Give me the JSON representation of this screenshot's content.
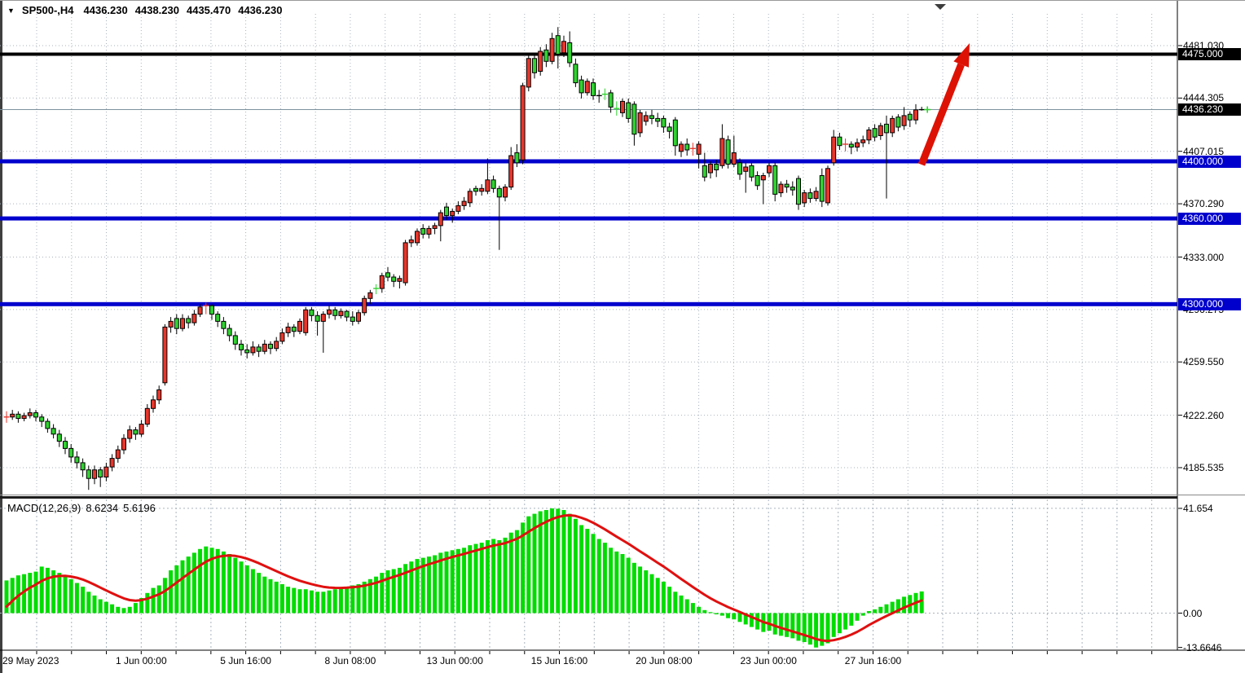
{
  "header": {
    "dropdown_icon": "▼",
    "symbol_timeframe": "SP500-,H4",
    "open": "4436.230",
    "high": "4438.230",
    "low": "4435.470",
    "close": "4436.230"
  },
  "macd": {
    "title": "MACD(12,26,9)",
    "main_value": "8.6234",
    "signal_value": "5.6196"
  },
  "icons": {
    "symbol_dropdown": "▼",
    "chart_top_marker": "triangle-down"
  },
  "colors": {
    "bull_candle": "#e8362b",
    "bear_candle": "#30d330",
    "candle_outline": "#000000",
    "macd_histogram": "#00dc00",
    "macd_signal": "#e01010",
    "level_blue": "#0000cd",
    "level_black": "#000000",
    "badge_black": "#000000",
    "badge_blue": "#0000cd",
    "grid": "#a9b3bd",
    "current_price_line": "#7e929e",
    "arrow_red": "#dd1205",
    "last_tick_cross": "#2ed42e"
  },
  "chart_data": [
    {
      "type": "candlestick",
      "title": "SP500- H4 price panel",
      "ylim": [
        4166.7,
        4504.4
      ],
      "y_ticks": [
        {
          "label": "4481.030",
          "price": 4481.03
        },
        {
          "label": "4444.305",
          "price": 4444.305
        },
        {
          "label": "4407.015",
          "price": 4407.015
        },
        {
          "label": "4370.290",
          "price": 4370.29
        },
        {
          "label": "4333.000",
          "price": 4333.0
        },
        {
          "label": "4296.275",
          "price": 4296.275
        },
        {
          "label": "4259.550",
          "price": 4259.55
        },
        {
          "label": "4222.260",
          "price": 4222.26
        },
        {
          "label": "4185.535",
          "price": 4185.535
        }
      ],
      "price_badges": [
        {
          "label": "4475.000",
          "price": 4475.0,
          "bg": "#000000"
        },
        {
          "label": "4436.230",
          "price": 4436.23,
          "bg": "#000000"
        },
        {
          "label": "4400.000",
          "price": 4400.0,
          "bg": "#0000cd"
        },
        {
          "label": "4360.000",
          "price": 4360.0,
          "bg": "#0000cd"
        },
        {
          "label": "4300.000",
          "price": 4300.0,
          "bg": "#0000cd"
        }
      ],
      "horizontal_levels": [
        {
          "price": 4475.0,
          "color": "#000000",
          "thickness": 4
        },
        {
          "price": 4400.0,
          "color": "#0000cd",
          "thickness": 5
        },
        {
          "price": 4360.0,
          "color": "#0000cd",
          "thickness": 5
        },
        {
          "price": 4300.0,
          "color": "#0000cd",
          "thickness": 5
        }
      ],
      "current_price": 4436.23,
      "current_price_label": "4436.230",
      "x_labels": [
        "29 May 2023",
        "1 Jun 00:00",
        "5 Jun 16:00",
        "8 Jun 08:00",
        "13 Jun 00:00",
        "15 Jun 16:00",
        "20 Jun 08:00",
        "23 Jun 00:00",
        "27 Jun 16:00"
      ],
      "arrow_annotation": {
        "tail": [
          1131,
          201
        ],
        "tip": [
          1190,
          52
        ],
        "color": "#dd1205",
        "thickness": 9
      },
      "top_marker": {
        "x": 1154,
        "y": 4
      },
      "ohlc": [
        [
          4220,
          4225,
          4217,
          4221
        ],
        [
          4221,
          4226,
          4219,
          4223
        ],
        [
          4223,
          4225,
          4217,
          4220
        ],
        [
          4220,
          4224,
          4218,
          4222
        ],
        [
          4222,
          4227,
          4220,
          4224
        ],
        [
          4224,
          4226,
          4218,
          4221
        ],
        [
          4221,
          4223,
          4214,
          4218
        ],
        [
          4218,
          4220,
          4210,
          4213
        ],
        [
          4213,
          4216,
          4206,
          4209
        ],
        [
          4209,
          4212,
          4200,
          4204
        ],
        [
          4204,
          4207,
          4195,
          4199
        ],
        [
          4199,
          4202,
          4189,
          4193
        ],
        [
          4193,
          4197,
          4185,
          4189
        ],
        [
          4189,
          4192,
          4179,
          4184
        ],
        [
          4184,
          4187,
          4170,
          4178
        ],
        [
          4178,
          4187,
          4174,
          4184
        ],
        [
          4184,
          4186,
          4172,
          4179
        ],
        [
          4179,
          4189,
          4176,
          4186
        ],
        [
          4186,
          4195,
          4183,
          4192
        ],
        [
          4192,
          4201,
          4189,
          4198
        ],
        [
          4198,
          4209,
          4195,
          4206
        ],
        [
          4206,
          4215,
          4203,
          4212
        ],
        [
          4212,
          4214,
          4205,
          4209
        ],
        [
          4209,
          4219,
          4207,
          4216
        ],
        [
          4216,
          4230,
          4214,
          4227
        ],
        [
          4227,
          4236,
          4224,
          4233
        ],
        [
          4233,
          4243,
          4230,
          4240
        ],
        [
          4245,
          4286,
          4243,
          4284
        ],
        [
          4284,
          4291,
          4280,
          4288
        ],
        [
          4290,
          4293,
          4279,
          4283
        ],
        [
          4283,
          4293,
          4281,
          4290
        ],
        [
          4290,
          4292,
          4283,
          4287
        ],
        [
          4287,
          4296,
          4285,
          4293
        ],
        [
          4293,
          4300,
          4291,
          4298
        ],
        [
          4298,
          4301,
          4293,
          4299
        ],
        [
          4299,
          4300,
          4289,
          4293
        ],
        [
          4293,
          4295,
          4284,
          4288
        ],
        [
          4288,
          4291,
          4279,
          4283
        ],
        [
          4283,
          4286,
          4274,
          4278
        ],
        [
          4278,
          4281,
          4268,
          4272
        ],
        [
          4272,
          4275,
          4264,
          4268
        ],
        [
          4268,
          4272,
          4262,
          4266
        ],
        [
          4266,
          4274,
          4264,
          4270
        ],
        [
          4270,
          4272,
          4263,
          4267
        ],
        [
          4267,
          4275,
          4265,
          4272
        ],
        [
          4272,
          4274,
          4265,
          4269
        ],
        [
          4269,
          4277,
          4267,
          4274
        ],
        [
          4274,
          4283,
          4272,
          4280
        ],
        [
          4280,
          4287,
          4277,
          4284
        ],
        [
          4284,
          4286,
          4277,
          4281
        ],
        [
          4281,
          4290,
          4279,
          4288
        ],
        [
          4280,
          4298,
          4278,
          4296
        ],
        [
          4296,
          4298,
          4288,
          4292
        ],
        [
          4292,
          4295,
          4278,
          4288
        ],
        [
          4288,
          4295,
          4266,
          4293
        ],
        [
          4293,
          4299,
          4290,
          4296
        ],
        [
          4296,
          4298,
          4289,
          4292
        ],
        [
          4292,
          4297,
          4290,
          4295
        ],
        [
          4295,
          4296,
          4288,
          4291
        ],
        [
          4291,
          4295,
          4285,
          4288
        ],
        [
          4288,
          4296,
          4286,
          4294
        ],
        [
          4294,
          4306,
          4292,
          4304
        ],
        [
          4304,
          4310,
          4300,
          4308
        ],
        [
          4311.5,
          4314,
          4307,
          4311
        ],
        [
          4311,
          4322,
          4308,
          4320
        ],
        [
          4322,
          4326,
          4316,
          4319
        ],
        [
          4319,
          4321,
          4312,
          4316
        ],
        [
          4316,
          4320,
          4311,
          4318
        ],
        [
          4315,
          4345,
          4313,
          4343
        ],
        [
          4343,
          4348,
          4340,
          4345
        ],
        [
          4343,
          4353,
          4341,
          4351
        ],
        [
          4353,
          4356,
          4346,
          4349
        ],
        [
          4349,
          4355,
          4346,
          4353
        ],
        [
          4353,
          4357,
          4349,
          4355
        ],
        [
          4355,
          4366,
          4344,
          4364
        ],
        [
          4368,
          4371,
          4359,
          4362
        ],
        [
          4362,
          4367,
          4357,
          4365
        ],
        [
          4365,
          4372,
          4363,
          4369
        ],
        [
          4369,
          4375,
          4366,
          4372
        ],
        [
          4371,
          4381,
          4368,
          4379
        ],
        [
          4381,
          4383,
          4376,
          4379
        ],
        [
          4379,
          4384,
          4376,
          4381
        ],
        [
          4379,
          4402,
          4377,
          4387
        ],
        [
          4387,
          4390,
          4378,
          4381
        ],
        [
          4381,
          4383,
          4338,
          4375
        ],
        [
          4375,
          4384,
          4372,
          4382
        ],
        [
          4382,
          4410,
          4380,
          4404
        ],
        [
          4406,
          4412,
          4396,
          4399
        ],
        [
          4401,
          4455,
          4398,
          4453
        ],
        [
          4452,
          4474,
          4449,
          4472
        ],
        [
          4472,
          4475,
          4458,
          4462
        ],
        [
          4463,
          4480,
          4460,
          4477
        ],
        [
          4478,
          4482,
          4466,
          4470
        ],
        [
          4470,
          4490,
          4468,
          4486
        ],
        [
          4488,
          4494,
          4465,
          4475
        ],
        [
          4476,
          4488,
          4473,
          4484
        ],
        [
          4483,
          4491,
          4466,
          4469
        ],
        [
          4468,
          4472,
          4452,
          4455
        ],
        [
          4457,
          4460,
          4444,
          4448
        ],
        [
          4448,
          4458,
          4446,
          4456
        ],
        [
          4455,
          4458,
          4443,
          4446
        ],
        [
          4446,
          4450,
          4441,
          4446
        ],
        [
          4447.8,
          4451,
          4443,
          4447
        ],
        [
          4448,
          4450,
          4434,
          4438
        ],
        [
          4438,
          4442,
          4432,
          4437
        ],
        [
          4434,
          4444,
          4431,
          4442
        ],
        [
          4441,
          4444,
          4427,
          4430
        ],
        [
          4440,
          4442,
          4411,
          4419
        ],
        [
          4420,
          4436,
          4417,
          4434
        ],
        [
          4428,
          4435,
          4425,
          4432
        ],
        [
          4432,
          4436,
          4426,
          4430
        ],
        [
          4430,
          4434,
          4424,
          4428
        ],
        [
          4430,
          4432,
          4420,
          4424
        ],
        [
          4424,
          4427,
          4416,
          4421
        ],
        [
          4429,
          4431,
          4404,
          4411
        ],
        [
          4407,
          4414,
          4403,
          4412
        ],
        [
          4412,
          4416,
          4404,
          4408
        ],
        [
          4408,
          4413,
          4404,
          4409
        ],
        [
          4405,
          4414,
          4395,
          4412
        ],
        [
          4397,
          4406,
          4386,
          4389
        ],
        [
          4392,
          4400,
          4388,
          4398
        ],
        [
          4398,
          4401,
          4389,
          4394
        ],
        [
          4397,
          4426,
          4395,
          4416
        ],
        [
          4415,
          4418,
          4395,
          4398
        ],
        [
          4398,
          4418,
          4396,
          4406
        ],
        [
          4399,
          4402,
          4387,
          4391
        ],
        [
          4393,
          4399,
          4378,
          4396
        ],
        [
          4397,
          4399,
          4386,
          4389
        ],
        [
          4390,
          4393,
          4380,
          4383
        ],
        [
          4387,
          4392,
          4370,
          4390
        ],
        [
          4392,
          4399,
          4389,
          4397
        ],
        [
          4397,
          4399,
          4372,
          4377
        ],
        [
          4378,
          4386,
          4375,
          4384
        ],
        [
          4384,
          4387,
          4378,
          4382
        ],
        [
          4382,
          4386,
          4376,
          4380
        ],
        [
          4388,
          4390,
          4366,
          4370
        ],
        [
          4371,
          4380,
          4368,
          4378
        ],
        [
          4378,
          4381,
          4371,
          4374
        ],
        [
          4374,
          4382,
          4372,
          4379
        ],
        [
          4390,
          4395,
          4368,
          4372
        ],
        [
          4371,
          4397,
          4369,
          4395
        ],
        [
          4399,
          4422,
          4397,
          4417
        ],
        [
          4417,
          4420,
          4408,
          4411
        ],
        [
          4411,
          4416,
          4407,
          4412
        ],
        [
          4412,
          4414,
          4405,
          4410
        ],
        [
          4410,
          4416,
          4407,
          4413
        ],
        [
          4413,
          4418,
          4410,
          4415
        ],
        [
          4415,
          4424,
          4412,
          4422
        ],
        [
          4423,
          4426,
          4414,
          4417
        ],
        [
          4418,
          4427,
          4415,
          4425
        ],
        [
          4426,
          4432,
          4374,
          4420
        ],
        [
          4420,
          4432,
          4417,
          4430
        ],
        [
          4431,
          4433,
          4421,
          4424
        ],
        [
          4425,
          4438,
          4422,
          4432
        ],
        [
          4433,
          4435,
          4424,
          4429
        ],
        [
          4429,
          4440,
          4426,
          4436
        ],
        [
          4436.2,
          4438.2,
          4435.5,
          4436.2
        ]
      ]
    },
    {
      "type": "macd",
      "title": "MACD(12,26,9)",
      "ylim": [
        -14.1,
        45.2
      ],
      "y_ticks": [
        {
          "label": "41.654",
          "value": 41.654
        },
        {
          "label": "0.00",
          "value": 0.0
        },
        {
          "label": "-13.6646",
          "value": -13.6646
        }
      ],
      "current_macd": 8.6234,
      "current_signal": 5.6196,
      "signal_period": 9,
      "values": [
        13,
        14,
        15,
        15.5,
        16,
        16.5,
        18.5,
        18,
        17,
        16,
        15,
        13.5,
        12,
        10.5,
        8.5,
        7,
        5.5,
        4.5,
        3.5,
        2.5,
        2,
        2.5,
        4,
        6,
        8,
        10,
        11,
        14,
        17,
        19,
        21,
        22.5,
        24,
        25.5,
        26.5,
        26,
        25.5,
        24.5,
        23.5,
        22,
        20.5,
        19,
        17.5,
        16,
        14.5,
        13.5,
        12.5,
        11.5,
        10.5,
        10,
        9.5,
        9.5,
        9,
        8.5,
        8.5,
        9,
        9.5,
        10,
        10.5,
        11,
        11.5,
        12.5,
        13.5,
        14.5,
        16,
        17,
        17.5,
        18,
        19.5,
        20.5,
        21.5,
        22,
        22.5,
        23,
        24,
        24.5,
        25,
        25.5,
        26,
        27,
        27.5,
        28,
        29,
        29.5,
        29,
        30,
        32,
        33,
        36,
        38.5,
        39.5,
        40.5,
        41,
        41.65,
        41.5,
        41,
        39.5,
        37.5,
        35,
        33.5,
        31.5,
        29.5,
        28,
        26,
        24.5,
        23.5,
        22,
        20,
        18.5,
        17,
        15.5,
        14,
        12.5,
        10.5,
        8.5,
        7,
        5.5,
        4,
        2.5,
        1.2,
        0.4,
        -0.5,
        -1,
        -2,
        -2.5,
        -3.5,
        -4.5,
        -5.5,
        -6.5,
        -7.5,
        -7,
        -8.5,
        -9,
        -9.5,
        -10,
        -11,
        -11.5,
        -12.5,
        -13.66,
        -13,
        -12,
        -9.5,
        -8,
        -6.5,
        -5,
        -3,
        -1,
        0.8,
        1.5,
        2.5,
        3.5,
        4.5,
        5.5,
        6.5,
        7.2,
        8,
        8.62
      ]
    }
  ]
}
